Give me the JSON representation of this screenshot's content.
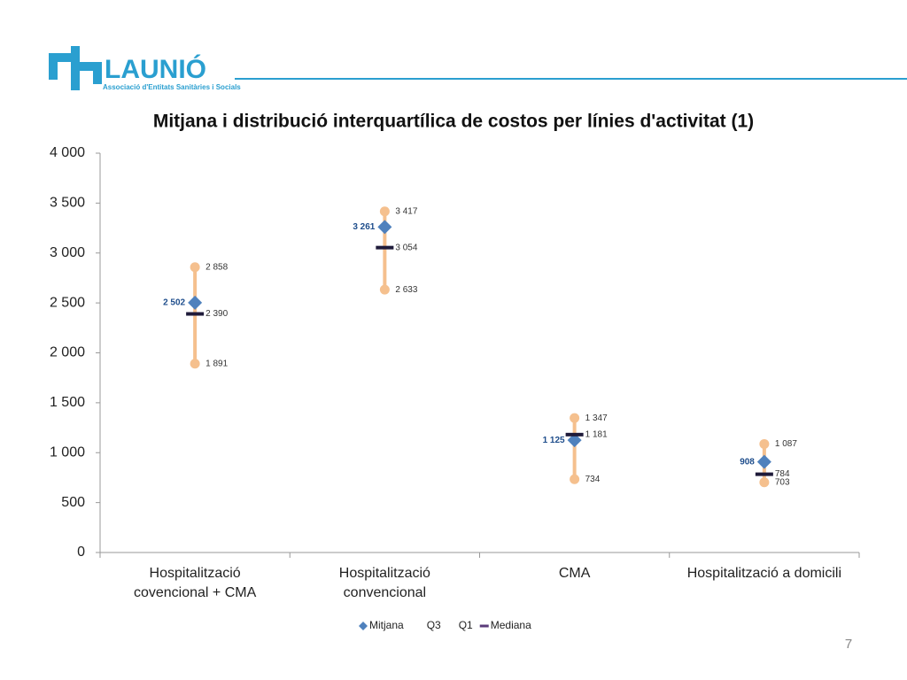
{
  "header": {
    "logo_text": "LAUNIÓ",
    "logo_subtitle": "Associació d'Entitats Sanitàries i Socials"
  },
  "page_number": "7",
  "chart_data": {
    "type": "quartile",
    "title": "Mitjana i distribució interquartílica de costos per línies d'activitat (1)",
    "categories": [
      "Hospitalització covencional + CMA",
      "Hospitalització convencional",
      "CMA",
      "Hospitalització a domicili"
    ],
    "series": [
      {
        "name": "Mitjana",
        "color": "#4f81bd",
        "marker": "diamond",
        "values": [
          2502,
          3261,
          1125,
          908
        ],
        "value_labels": [
          "2 502",
          "3 261",
          "1 125",
          "908"
        ]
      },
      {
        "name": "Q3",
        "color": "#f5c08e",
        "marker": "circle",
        "values": [
          2858,
          3417,
          1347,
          1087
        ],
        "value_labels": [
          "2 858",
          "3 417",
          "1 347",
          "1 087"
        ]
      },
      {
        "name": "Q1",
        "color": "#f5c08e",
        "marker": "circle",
        "values": [
          1891,
          2633,
          734,
          703
        ],
        "value_labels": [
          "1 891",
          "2 633",
          "734",
          "703"
        ]
      },
      {
        "name": "Mediana",
        "color": "#1f1b3a",
        "marker": "dash",
        "values": [
          2390,
          3054,
          1181,
          784
        ],
        "value_labels": [
          "2 390",
          "3 054",
          "1 181",
          "784"
        ]
      }
    ],
    "ylim": [
      0,
      4000
    ],
    "yticks": [
      0,
      500,
      {
        "value": 1000,
        "label": "1 000"
      },
      {
        "value": 1500,
        "label": "1 500"
      },
      {
        "value": 2000,
        "label": "2 000"
      },
      {
        "value": 2500,
        "label": "2 500"
      },
      {
        "value": 3000,
        "label": "3 000"
      },
      {
        "value": 3500,
        "label": "3 500"
      },
      {
        "value": 4000,
        "label": "4 000"
      }
    ],
    "legend": "bottom"
  }
}
